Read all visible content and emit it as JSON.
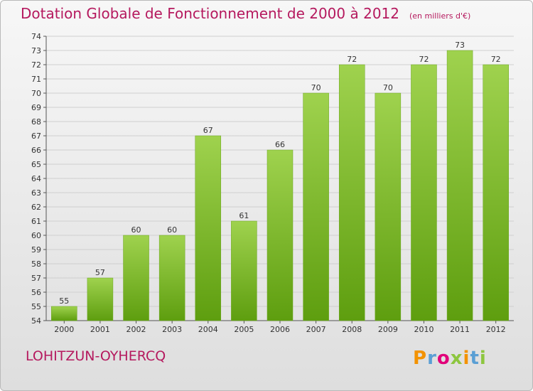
{
  "title": "Dotation Globale de Fonctionnement de 2000 à 2012",
  "subtitle": "(en milliers d'€)",
  "place_name": "LOHITZUN-OYHERCQ",
  "brand": {
    "letters": [
      "P",
      "r",
      "o",
      "x",
      "i",
      "t",
      "i"
    ],
    "colors": [
      "#f39200",
      "#5a9fd4",
      "#e1007a",
      "#8dc63f",
      "#f39200",
      "#5a9fd4",
      "#8dc63f"
    ]
  },
  "colors": {
    "title": "#b5195e",
    "bar_top": "#9fd24e",
    "bar_bottom": "#5e9e0f",
    "grid": "#cfcfcf"
  },
  "chart_data": {
    "type": "bar",
    "categories": [
      "2000",
      "2001",
      "2002",
      "2003",
      "2004",
      "2005",
      "2006",
      "2007",
      "2008",
      "2009",
      "2010",
      "2011",
      "2012"
    ],
    "values": [
      55,
      57,
      60,
      60,
      67,
      61,
      66,
      70,
      72,
      70,
      72,
      73,
      72
    ],
    "ylim": [
      54,
      74
    ],
    "yticks": [
      54,
      55,
      56,
      57,
      58,
      59,
      60,
      61,
      62,
      63,
      64,
      65,
      66,
      67,
      68,
      69,
      70,
      71,
      72,
      73,
      74
    ],
    "grid": true
  }
}
